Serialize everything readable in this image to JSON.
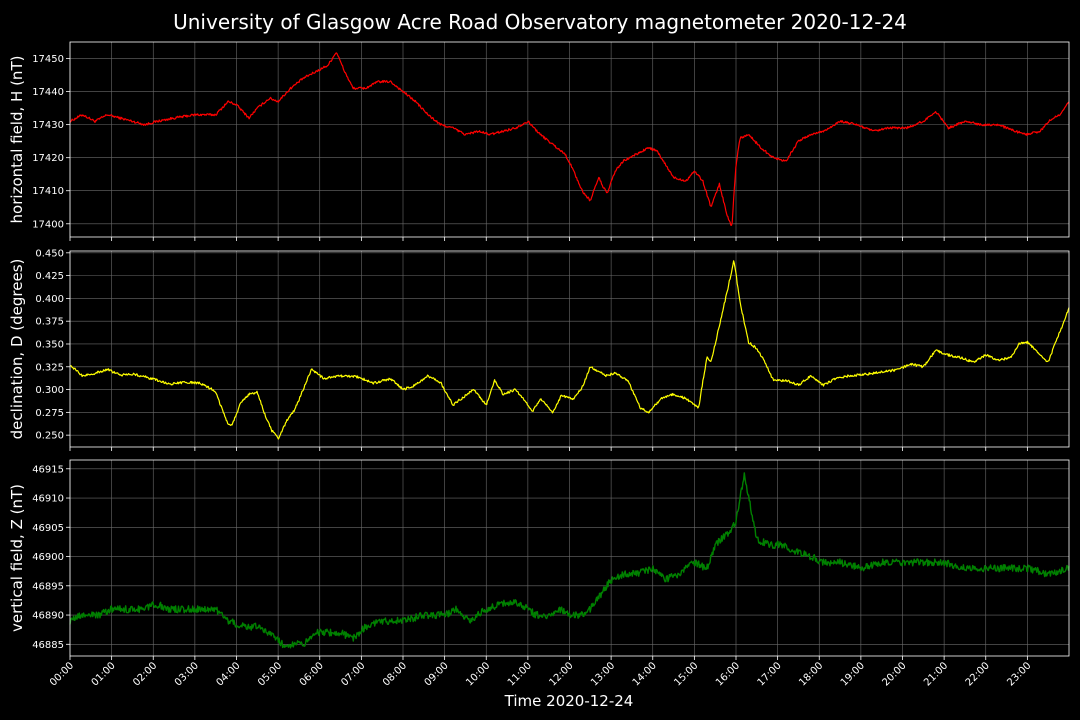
{
  "chart_data": {
    "type": "line",
    "title": "University of Glasgow Acre Road Observatory magnetometer 2020-12-24",
    "xlabel": "Time 2020-12-24",
    "x_ticks": [
      "00:00",
      "01:00",
      "02:00",
      "03:00",
      "04:00",
      "05:00",
      "06:00",
      "07:00",
      "08:00",
      "09:00",
      "10:00",
      "11:00",
      "12:00",
      "13:00",
      "14:00",
      "15:00",
      "16:00",
      "17:00",
      "18:00",
      "19:00",
      "20:00",
      "21:00",
      "22:00",
      "23:00"
    ],
    "x_unit": "hours",
    "xlim": [
      0,
      24
    ],
    "grid": true,
    "background": "#000000",
    "panels": [
      {
        "ylabel": "horizontal field, H (nT)",
        "color": "#ff0000",
        "ylim": [
          17396,
          17455
        ],
        "yticks": [
          "17400",
          "17410",
          "17420",
          "17430",
          "17440",
          "17450"
        ],
        "ytick_values": [
          17400,
          17410,
          17420,
          17430,
          17440,
          17450
        ],
        "x": [
          0,
          0.3,
          0.6,
          0.9,
          1.2,
          1.5,
          1.8,
          2.1,
          2.5,
          3.0,
          3.5,
          3.8,
          4.0,
          4.3,
          4.5,
          4.8,
          5.0,
          5.3,
          5.6,
          5.9,
          6.2,
          6.4,
          6.6,
          6.8,
          7.1,
          7.4,
          7.7,
          8.0,
          8.3,
          8.6,
          8.9,
          9.2,
          9.5,
          9.8,
          10.1,
          10.4,
          10.7,
          11.0,
          11.3,
          11.6,
          11.9,
          12.1,
          12.3,
          12.5,
          12.7,
          12.9,
          13.1,
          13.3,
          13.6,
          13.9,
          14.1,
          14.3,
          14.5,
          14.8,
          15.0,
          15.2,
          15.4,
          15.6,
          15.8,
          15.9,
          16.0,
          16.1,
          16.3,
          16.6,
          16.9,
          17.2,
          17.5,
          17.8,
          18.1,
          18.5,
          18.9,
          19.3,
          19.7,
          20.1,
          20.5,
          20.8,
          21.1,
          21.5,
          21.9,
          22.3,
          22.7,
          23.0,
          23.3,
          23.6,
          23.8,
          24.0
        ],
        "y": [
          17431,
          17433,
          17431,
          17433,
          17432,
          17431,
          17430,
          17431,
          17432,
          17433,
          17433,
          17437,
          17436,
          17432,
          17435,
          17438,
          17437,
          17441,
          17444,
          17446,
          17448,
          17452,
          17446,
          17441,
          17441,
          17443,
          17443,
          17440,
          17437,
          17433,
          17430,
          17429,
          17427,
          17428,
          17427,
          17428,
          17429,
          17431,
          17427,
          17424,
          17421,
          17416,
          17410,
          17407,
          17414,
          17409,
          17416,
          17419,
          17421,
          17423,
          17422,
          17418,
          17414,
          17413,
          17416,
          17413,
          17405,
          17412,
          17402,
          17399,
          17418,
          17426,
          17427,
          17423,
          17420,
          17419,
          17425,
          17427,
          17428,
          17431,
          17430,
          17428,
          17429,
          17429,
          17431,
          17434,
          17429,
          17431,
          17430,
          17430,
          17428,
          17427,
          17428,
          17432,
          17433,
          17437
        ]
      },
      {
        "ylabel": "declination, D (degrees)",
        "color": "#ffff00",
        "ylim": [
          0.237,
          0.452
        ],
        "yticks": [
          "0.250",
          "0.275",
          "0.300",
          "0.325",
          "0.350",
          "0.375",
          "0.400",
          "0.425",
          "0.450"
        ],
        "ytick_values": [
          0.25,
          0.275,
          0.3,
          0.325,
          0.35,
          0.375,
          0.4,
          0.425,
          0.45
        ],
        "x": [
          0,
          0.3,
          0.6,
          0.9,
          1.2,
          1.5,
          1.8,
          2.1,
          2.4,
          2.8,
          3.1,
          3.3,
          3.5,
          3.6,
          3.8,
          3.9,
          4.1,
          4.3,
          4.5,
          4.7,
          4.85,
          5.0,
          5.2,
          5.4,
          5.6,
          5.8,
          6.1,
          6.5,
          6.9,
          7.3,
          7.7,
          8.0,
          8.3,
          8.6,
          8.9,
          9.2,
          9.4,
          9.7,
          10.0,
          10.2,
          10.4,
          10.7,
          10.9,
          11.1,
          11.3,
          11.6,
          11.8,
          12.1,
          12.3,
          12.5,
          12.7,
          12.9,
          13.1,
          13.4,
          13.7,
          13.9,
          14.2,
          14.5,
          14.8,
          15.1,
          15.3,
          15.4,
          15.6,
          15.8,
          15.95,
          16.1,
          16.3,
          16.5,
          16.7,
          16.9,
          17.2,
          17.5,
          17.8,
          18.1,
          18.4,
          18.7,
          19.0,
          19.3,
          19.6,
          19.9,
          20.2,
          20.5,
          20.8,
          21.1,
          21.4,
          21.7,
          22.0,
          22.3,
          22.6,
          22.8,
          23.0,
          23.2,
          23.5,
          23.7,
          23.85,
          24.0
        ],
        "y": [
          0.327,
          0.315,
          0.318,
          0.322,
          0.316,
          0.317,
          0.314,
          0.31,
          0.306,
          0.308,
          0.307,
          0.303,
          0.298,
          0.285,
          0.262,
          0.262,
          0.285,
          0.295,
          0.297,
          0.27,
          0.255,
          0.246,
          0.265,
          0.278,
          0.3,
          0.322,
          0.312,
          0.315,
          0.314,
          0.307,
          0.312,
          0.3,
          0.305,
          0.315,
          0.308,
          0.283,
          0.29,
          0.3,
          0.283,
          0.31,
          0.295,
          0.3,
          0.29,
          0.275,
          0.29,
          0.275,
          0.293,
          0.29,
          0.302,
          0.325,
          0.32,
          0.315,
          0.318,
          0.31,
          0.28,
          0.275,
          0.29,
          0.295,
          0.29,
          0.28,
          0.335,
          0.33,
          0.37,
          0.41,
          0.442,
          0.395,
          0.352,
          0.345,
          0.33,
          0.31,
          0.31,
          0.305,
          0.315,
          0.305,
          0.312,
          0.315,
          0.316,
          0.318,
          0.32,
          0.322,
          0.328,
          0.325,
          0.343,
          0.338,
          0.335,
          0.33,
          0.338,
          0.332,
          0.335,
          0.35,
          0.352,
          0.343,
          0.33,
          0.355,
          0.37,
          0.39
        ]
      },
      {
        "ylabel": "vertical field, Z (nT)",
        "color": "#008000",
        "ylim": [
          46883,
          46916.5
        ],
        "yticks": [
          "46885",
          "46890",
          "46895",
          "46900",
          "46905",
          "46910",
          "46915"
        ],
        "ytick_values": [
          46885,
          46890,
          46895,
          46900,
          46905,
          46910,
          46915
        ],
        "x": [
          0,
          0.3,
          0.7,
          1.0,
          1.4,
          1.8,
          2.0,
          2.4,
          2.8,
          3.0,
          3.3,
          3.5,
          3.8,
          4.2,
          4.5,
          4.8,
          5.1,
          5.3,
          5.6,
          5.9,
          6.2,
          6.5,
          6.8,
          7.1,
          7.5,
          8.0,
          8.5,
          9.0,
          9.3,
          9.6,
          10.0,
          10.4,
          10.8,
          11.2,
          11.5,
          11.8,
          12.0,
          12.3,
          12.5,
          12.7,
          13.0,
          13.3,
          13.6,
          14.0,
          14.3,
          14.6,
          15.0,
          15.3,
          15.5,
          15.8,
          16.0,
          16.2,
          16.5,
          16.8,
          17.1,
          17.4,
          17.8,
          18.1,
          18.5,
          19.0,
          19.5,
          20.0,
          20.5,
          21.0,
          21.5,
          22.0,
          22.5,
          23.0,
          23.5,
          24.0
        ],
        "y": [
          46889,
          46890,
          46890,
          46891,
          46891,
          46891,
          46892,
          46891,
          46891,
          46891,
          46891,
          46891,
          46889,
          46888,
          46888,
          46887,
          46885,
          46885,
          46885,
          46887,
          46887,
          46887,
          46886,
          46888,
          46889,
          46889,
          46890,
          46890,
          46891,
          46889,
          46891,
          46892,
          46892,
          46890,
          46890,
          46891,
          46890,
          46890,
          46891,
          46893,
          46896,
          46897,
          46897,
          46898,
          46896,
          46897,
          46899,
          46898,
          46902,
          46904,
          46906,
          46914,
          46903,
          46902,
          46902,
          46901,
          46900,
          46899,
          46899,
          46898,
          46899,
          46899,
          46899,
          46899,
          46898,
          46898,
          46898,
          46898,
          46897,
          46898
        ]
      }
    ]
  }
}
